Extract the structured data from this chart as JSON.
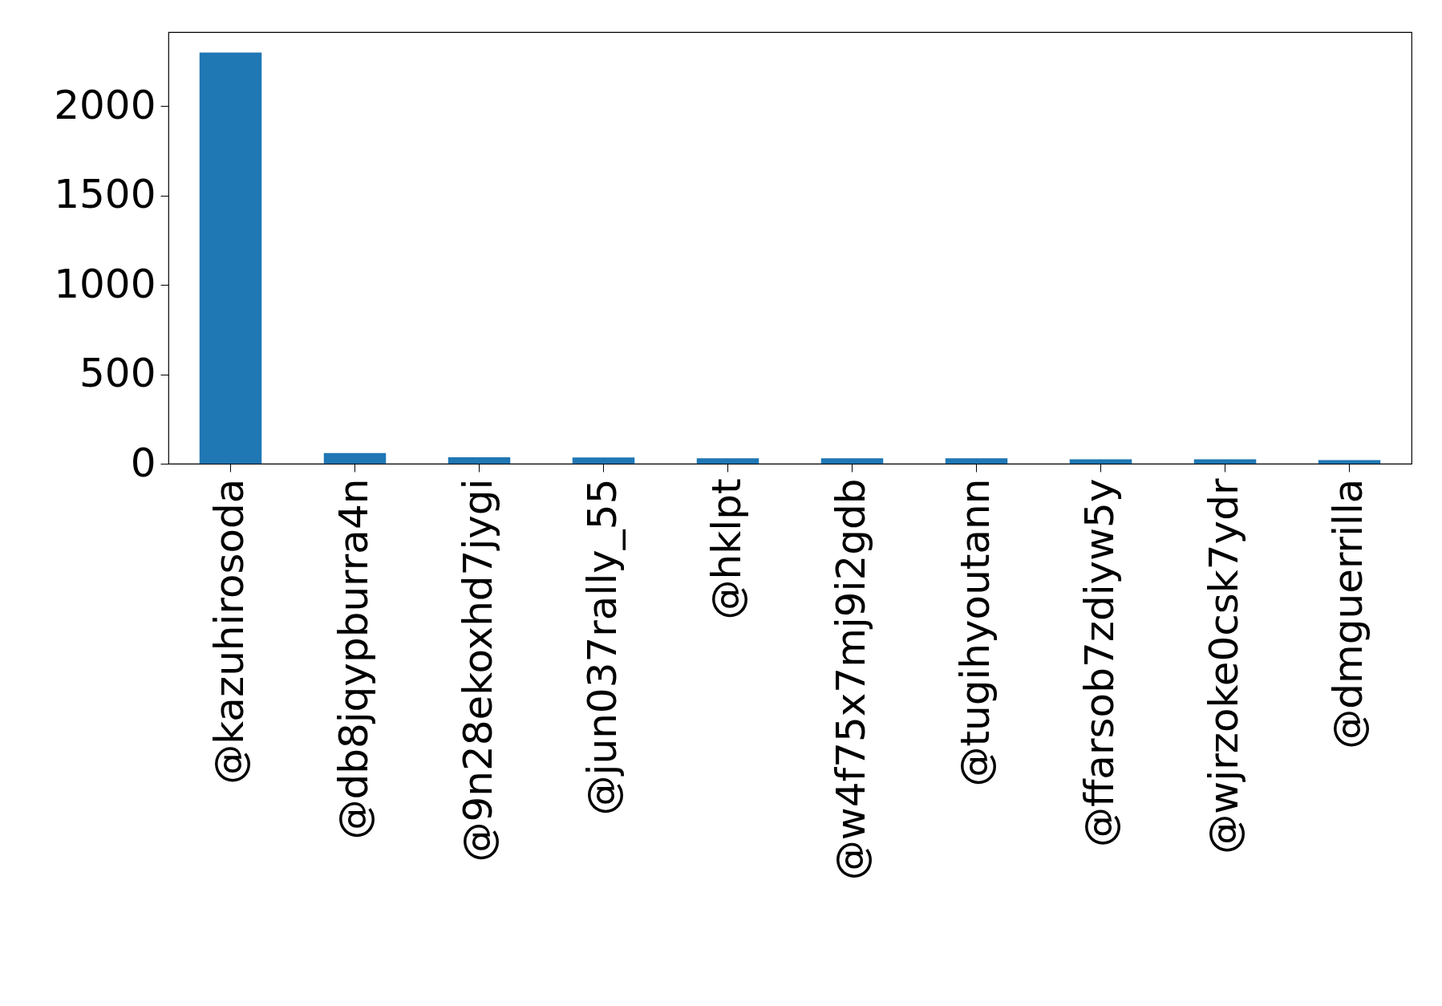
{
  "chart_data": {
    "type": "bar",
    "categories": [
      "@kazuhirosoda",
      "@db8jqypburra4n",
      "@9n28ekoxhd7jygi",
      "@jun037rally_55",
      "@hklpt",
      "@w4f75x7mj9i2gdb",
      "@tugihyoutann",
      "@ffarsob7zdiyw5y",
      "@wjrzoke0csk7ydr",
      "@dmguerrilla"
    ],
    "values": [
      2300,
      60,
      36,
      35,
      30,
      30,
      30,
      25,
      25,
      20
    ],
    "color": "#1f77b4",
    "ylim": [
      0,
      2415
    ],
    "yticks": [
      0,
      500,
      1000,
      1500,
      2000
    ],
    "grid": false
  }
}
